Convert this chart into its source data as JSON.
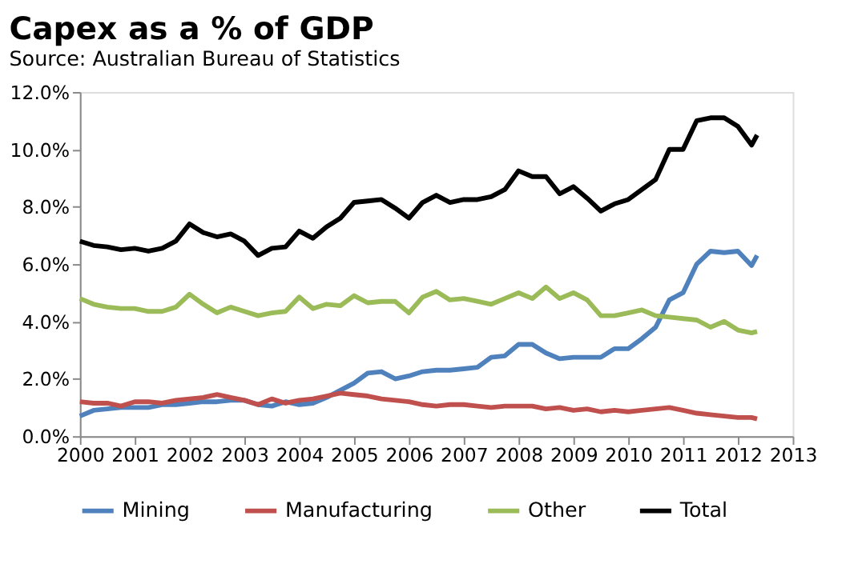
{
  "chart_data": {
    "type": "line",
    "title": "Capex as a % of GDP",
    "subtitle": "Source: Australian Bureau of Statistics",
    "x": [
      2000,
      2000.25,
      2000.5,
      2000.75,
      2001,
      2001.25,
      2001.5,
      2001.75,
      2002,
      2002.25,
      2002.5,
      2002.75,
      2003,
      2003.25,
      2003.5,
      2003.75,
      2004,
      2004.25,
      2004.5,
      2004.75,
      2005,
      2005.25,
      2005.5,
      2005.75,
      2006,
      2006.25,
      2006.5,
      2006.75,
      2007,
      2007.25,
      2007.5,
      2007.75,
      2008,
      2008.25,
      2008.5,
      2008.75,
      2009,
      2009.25,
      2009.5,
      2009.75,
      2010,
      2010.25,
      2010.5,
      2010.75,
      2011,
      2011.25,
      2011.5,
      2011.75,
      2012,
      2012.25,
      2012.35
    ],
    "series": [
      {
        "name": "Mining",
        "color": "#4f81bd",
        "values": [
          0.7,
          0.9,
          0.95,
          1.0,
          1.0,
          1.0,
          1.1,
          1.1,
          1.15,
          1.2,
          1.2,
          1.25,
          1.25,
          1.1,
          1.05,
          1.2,
          1.1,
          1.15,
          1.35,
          1.6,
          1.85,
          2.2,
          2.25,
          2.0,
          2.1,
          2.25,
          2.3,
          2.3,
          2.35,
          2.4,
          2.75,
          2.8,
          3.2,
          3.2,
          2.9,
          2.7,
          2.75,
          2.75,
          2.75,
          3.05,
          3.05,
          3.4,
          3.8,
          4.75,
          5.0,
          6.0,
          6.45,
          6.4,
          6.45,
          5.95,
          6.3
        ]
      },
      {
        "name": "Manufacturing",
        "color": "#c0504d",
        "values": [
          1.2,
          1.15,
          1.15,
          1.05,
          1.2,
          1.2,
          1.15,
          1.25,
          1.3,
          1.35,
          1.45,
          1.35,
          1.25,
          1.1,
          1.3,
          1.15,
          1.25,
          1.3,
          1.4,
          1.5,
          1.45,
          1.4,
          1.3,
          1.25,
          1.2,
          1.1,
          1.05,
          1.1,
          1.1,
          1.05,
          1.0,
          1.05,
          1.05,
          1.05,
          0.95,
          1.0,
          0.9,
          0.95,
          0.85,
          0.9,
          0.85,
          0.9,
          0.95,
          1.0,
          0.9,
          0.8,
          0.75,
          0.7,
          0.65,
          0.65,
          0.6
        ]
      },
      {
        "name": "Other",
        "color": "#9bbb59",
        "values": [
          4.8,
          4.6,
          4.5,
          4.45,
          4.45,
          4.35,
          4.35,
          4.5,
          4.95,
          4.6,
          4.3,
          4.5,
          4.35,
          4.2,
          4.3,
          4.35,
          4.85,
          4.45,
          4.6,
          4.55,
          4.9,
          4.65,
          4.7,
          4.7,
          4.3,
          4.85,
          5.05,
          4.75,
          4.8,
          4.7,
          4.6,
          4.8,
          5.0,
          4.8,
          5.2,
          4.8,
          5.0,
          4.75,
          4.2,
          4.2,
          4.3,
          4.4,
          4.2,
          4.15,
          4.1,
          4.05,
          3.8,
          4.0,
          3.7,
          3.6,
          3.65
        ]
      },
      {
        "name": "Total",
        "color": "#000000",
        "values": [
          6.8,
          6.65,
          6.6,
          6.5,
          6.55,
          6.45,
          6.55,
          6.8,
          7.4,
          7.1,
          6.95,
          7.05,
          6.8,
          6.3,
          6.55,
          6.6,
          7.15,
          6.9,
          7.3,
          7.6,
          8.15,
          8.2,
          8.25,
          7.95,
          7.6,
          8.15,
          8.4,
          8.15,
          8.25,
          8.25,
          8.35,
          8.6,
          9.25,
          9.05,
          9.05,
          8.45,
          8.7,
          8.3,
          7.85,
          8.1,
          8.25,
          8.6,
          8.95,
          10.0,
          10.0,
          11.0,
          11.1,
          11.1,
          10.8,
          10.15,
          10.5
        ]
      }
    ],
    "xlim": [
      2000,
      2013
    ],
    "xticks": [
      2000,
      2001,
      2002,
      2003,
      2004,
      2005,
      2006,
      2007,
      2008,
      2009,
      2010,
      2011,
      2012,
      2013
    ],
    "ylim": [
      0,
      12
    ],
    "yticks": [
      {
        "value": 0,
        "label": "0.0%"
      },
      {
        "value": 2,
        "label": "2.0%"
      },
      {
        "value": 4,
        "label": "4.0%"
      },
      {
        "value": 6,
        "label": "6.0%"
      },
      {
        "value": 8,
        "label": "8.0%"
      },
      {
        "value": 10,
        "label": "10.0%"
      },
      {
        "value": 12,
        "label": "12.0%"
      }
    ],
    "grid": false,
    "legend": "bottom",
    "marker": "none",
    "line_style": "solid"
  }
}
